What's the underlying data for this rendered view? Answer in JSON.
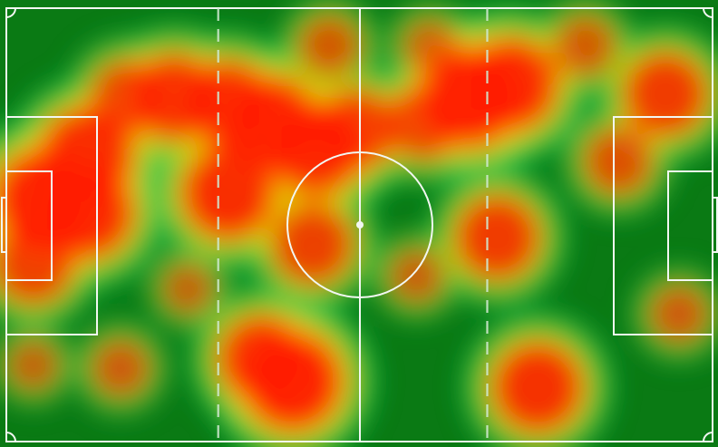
{
  "chart_data": {
    "type": "heatmap",
    "title": "",
    "xlabel": "",
    "ylabel": "",
    "xlim": [
      0,
      105
    ],
    "ylim": [
      0,
      68
    ],
    "grid": false,
    "legend": "none",
    "colors": {
      "pitch": "#0a7a14",
      "low": "#00c850",
      "mid": "#e6e600",
      "high": "#ff1a00",
      "lines": "#f2f7f2"
    },
    "zone_dividers_x": [
      31.5,
      71.5
    ],
    "hotspots": [
      {
        "x": 5.5,
        "y": 38,
        "intensity": 1.0
      },
      {
        "x": 12,
        "y": 45,
        "intensity": 0.9
      },
      {
        "x": 12,
        "y": 36,
        "intensity": 0.9
      },
      {
        "x": 4,
        "y": 28,
        "intensity": 0.7
      },
      {
        "x": 18,
        "y": 54,
        "intensity": 0.6
      },
      {
        "x": 25,
        "y": 54,
        "intensity": 0.8
      },
      {
        "x": 33,
        "y": 53,
        "intensity": 0.8
      },
      {
        "x": 39.5,
        "y": 50,
        "intensity": 0.9
      },
      {
        "x": 46,
        "y": 46,
        "intensity": 0.9
      },
      {
        "x": 52,
        "y": 49,
        "intensity": 0.7
      },
      {
        "x": 33,
        "y": 39,
        "intensity": 0.9
      },
      {
        "x": 45.5,
        "y": 31,
        "intensity": 0.7
      },
      {
        "x": 69,
        "y": 54,
        "intensity": 1.0
      },
      {
        "x": 75,
        "y": 56,
        "intensity": 0.9
      },
      {
        "x": 62,
        "y": 50,
        "intensity": 0.6
      },
      {
        "x": 73,
        "y": 32,
        "intensity": 0.75
      },
      {
        "x": 98,
        "y": 54.5,
        "intensity": 0.75
      },
      {
        "x": 91,
        "y": 44,
        "intensity": 0.5
      },
      {
        "x": 42.5,
        "y": 9.5,
        "intensity": 1.0
      },
      {
        "x": 38,
        "y": 13,
        "intensity": 0.8
      },
      {
        "x": 79,
        "y": 8.5,
        "intensity": 0.85
      },
      {
        "x": 17,
        "y": 11.5,
        "intensity": 0.35
      },
      {
        "x": 4,
        "y": 12,
        "intensity": 0.25
      },
      {
        "x": 100,
        "y": 20,
        "intensity": 0.35
      },
      {
        "x": 61,
        "y": 26,
        "intensity": 0.3
      },
      {
        "x": 48,
        "y": 62,
        "intensity": 0.4
      },
      {
        "x": 86,
        "y": 62,
        "intensity": 0.4
      },
      {
        "x": 63,
        "y": 62,
        "intensity": 0.3
      },
      {
        "x": 27,
        "y": 24,
        "intensity": 0.25
      }
    ]
  }
}
